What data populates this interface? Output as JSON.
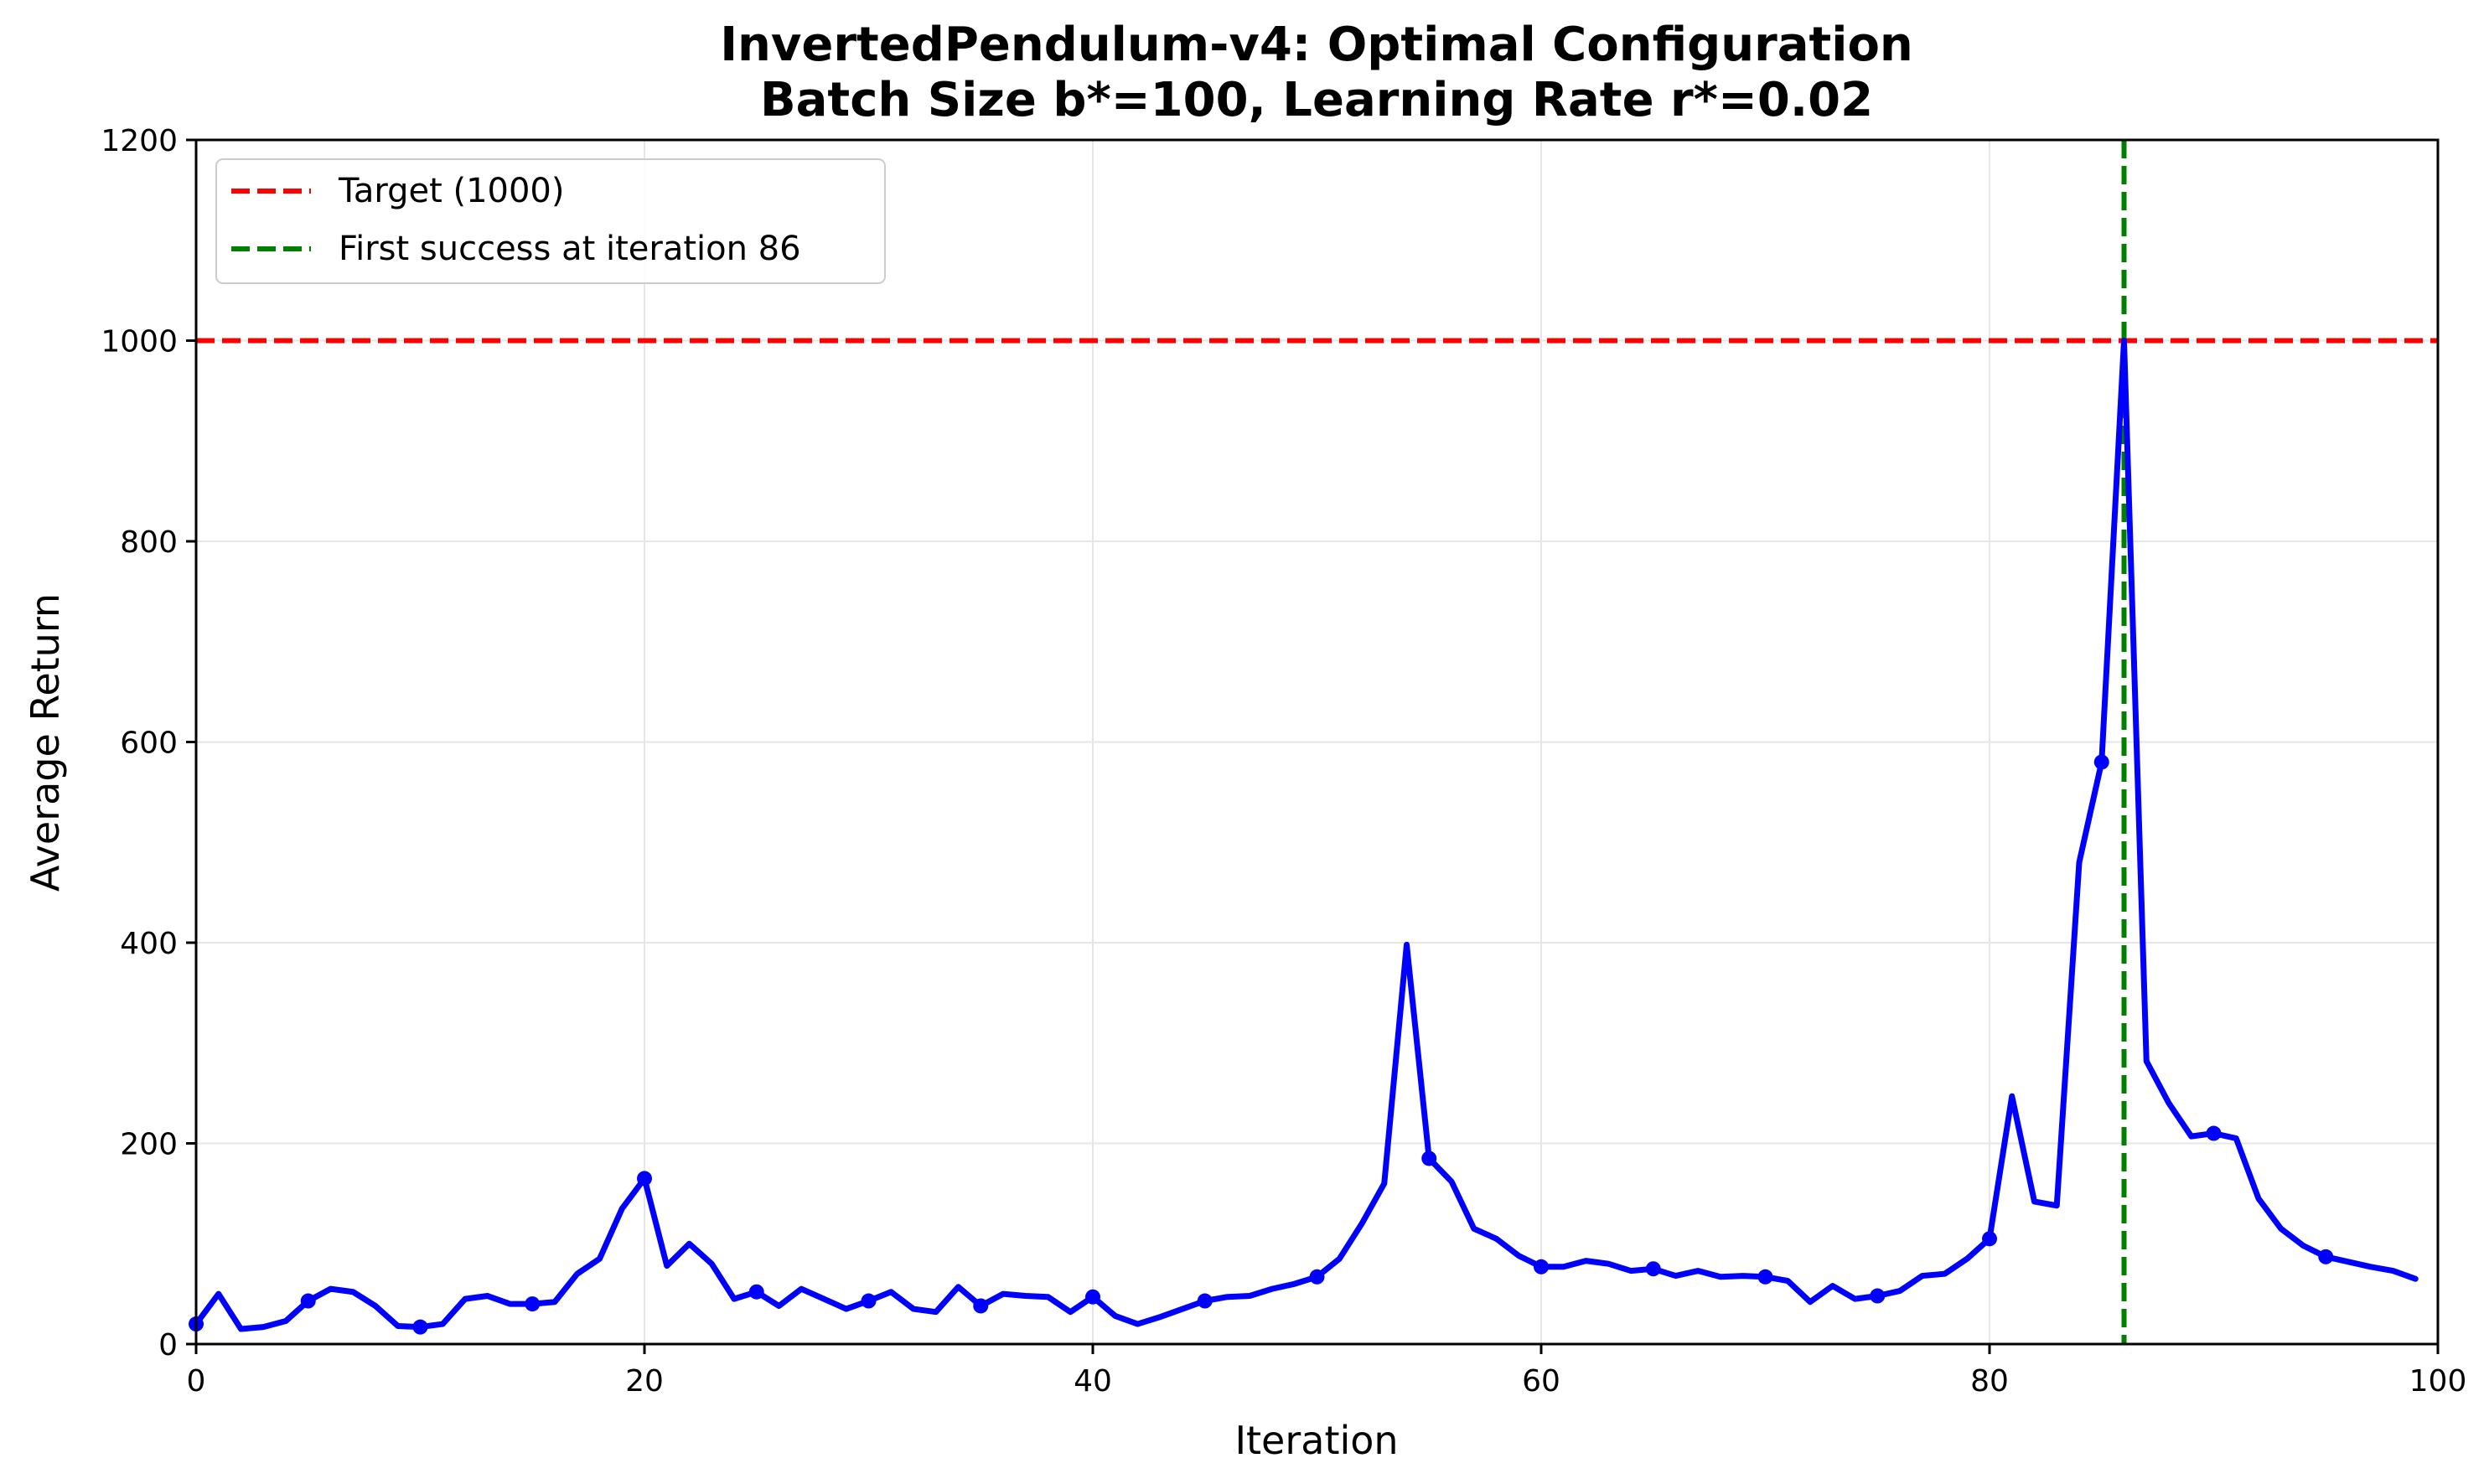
{
  "chart_data": {
    "type": "line",
    "title": "InvertedPendulum-v4: Optimal Configuration",
    "subtitle": "Batch Size b*=100, Learning Rate r*=0.02",
    "xlabel": "Iteration",
    "ylabel": "Average Return",
    "xlim": [
      0,
      100
    ],
    "ylim": [
      0,
      1200
    ],
    "xticks": [
      "0",
      "20",
      "40",
      "60",
      "80",
      "100"
    ],
    "yticks": [
      "0",
      "200",
      "400",
      "600",
      "800",
      "1000",
      "1200"
    ],
    "grid": true,
    "legend_position": "top-left",
    "series": [
      {
        "name": "",
        "color": "#0000ff",
        "marker_every": 5,
        "x": [
          0,
          1,
          2,
          3,
          4,
          5,
          6,
          7,
          8,
          9,
          10,
          11,
          12,
          13,
          14,
          15,
          16,
          17,
          18,
          19,
          20,
          21,
          22,
          23,
          24,
          25,
          26,
          27,
          28,
          29,
          30,
          31,
          32,
          33,
          34,
          35,
          36,
          37,
          38,
          39,
          40,
          41,
          42,
          43,
          44,
          45,
          46,
          47,
          48,
          49,
          50,
          51,
          52,
          53,
          54,
          55,
          56,
          57,
          58,
          59,
          60,
          61,
          62,
          63,
          64,
          65,
          66,
          67,
          68,
          69,
          70,
          71,
          72,
          73,
          74,
          75,
          76,
          77,
          78,
          79,
          80,
          81,
          82,
          83,
          84,
          85,
          86,
          87,
          88,
          89,
          90,
          91,
          92,
          93,
          94,
          95,
          96,
          97,
          98,
          99
        ],
        "y": [
          20,
          50,
          15,
          17,
          23,
          43,
          55,
          52,
          38,
          18,
          17,
          20,
          45,
          48,
          40,
          40,
          42,
          70,
          85,
          135,
          165,
          78,
          100,
          80,
          45,
          52,
          38,
          55,
          45,
          35,
          43,
          52,
          35,
          32,
          57,
          38,
          50,
          48,
          47,
          32,
          47,
          28,
          20,
          27,
          35,
          43,
          47,
          48,
          55,
          60,
          67,
          85,
          120,
          160,
          398,
          185,
          162,
          115,
          105,
          88,
          77,
          77,
          83,
          80,
          73,
          75,
          68,
          73,
          67,
          68,
          67,
          63,
          42,
          58,
          45,
          48,
          53,
          68,
          70,
          85,
          105,
          247,
          142,
          138,
          480,
          580,
          1000,
          282,
          240,
          207,
          210,
          205,
          145,
          115,
          98,
          87,
          82,
          77,
          73,
          65
        ]
      }
    ],
    "reference_lines": [
      {
        "orientation": "horizontal",
        "value": 1000,
        "label": "Target (1000)",
        "color": "#ff0000",
        "style": "dashed"
      },
      {
        "orientation": "vertical",
        "value": 86,
        "label": "First success at iteration 86",
        "color": "#008000",
        "style": "dashed"
      }
    ]
  }
}
